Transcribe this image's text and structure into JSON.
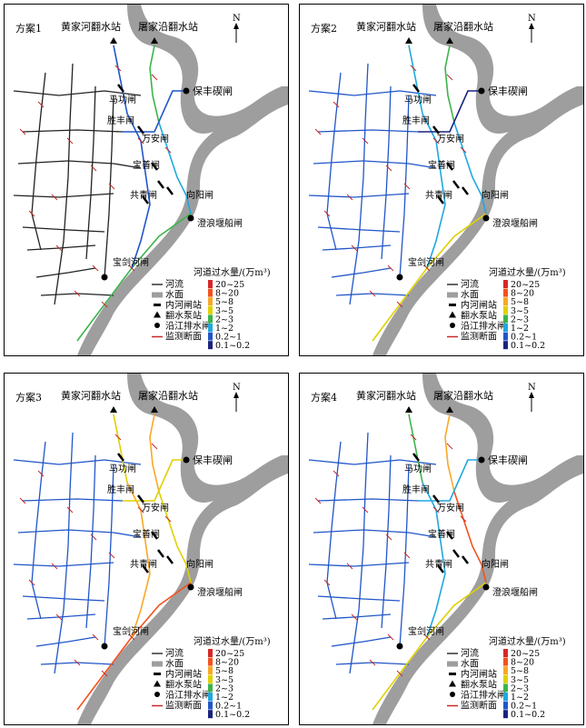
{
  "panels": [
    {
      "title": "方案1"
    },
    {
      "title": "方案2"
    },
    {
      "title": "方案3"
    },
    {
      "title": "方案4"
    }
  ],
  "labels": {
    "huangjia": "黄家河翻水站",
    "tujia": "屠家沿翻水站",
    "baofeng": "保丰碶闸",
    "magong": "马功闸",
    "shengfeng": "胜丰闸",
    "wanan": "万安闸",
    "baoshan": "宝善闸",
    "gongqing": "共青闸",
    "xiangyang": "向阳闸",
    "chenglang": "澄浪堰船闸",
    "baojian": "宝剑河闸",
    "north": "N"
  },
  "legend": {
    "title": "河道过水量/(万m³)",
    "classes": [
      {
        "label": "20~25",
        "color": "#d62728"
      },
      {
        "label": "8~20",
        "color": "#f4511e"
      },
      {
        "label": "5~8",
        "color": "#f9a825"
      },
      {
        "label": "3~5",
        "color": "#e0d000"
      },
      {
        "label": "2~3",
        "color": "#3cb44b"
      },
      {
        "label": "1~2",
        "color": "#1fa8e0"
      },
      {
        "label": "0.2~1",
        "color": "#2156c8"
      },
      {
        "label": "0.1~0.2",
        "color": "#1a237e"
      }
    ],
    "symbols": [
      {
        "label": "河流"
      },
      {
        "label": "水面"
      },
      {
        "label": "内河闸站"
      },
      {
        "label": "翻水泵站"
      },
      {
        "label": "沿江排水闸"
      },
      {
        "label": "监测断面"
      }
    ]
  },
  "colors": {
    "water": "#9e9e9e",
    "river": "#222222",
    "monitor": "#c62828",
    "c20": "#d62728",
    "c8": "#f4511e",
    "c5": "#f9a825",
    "c3": "#e0d000",
    "c2": "#3cb44b",
    "c1": "#1fa8e0",
    "c02": "#2156c8",
    "c01": "#1a237e"
  }
}
